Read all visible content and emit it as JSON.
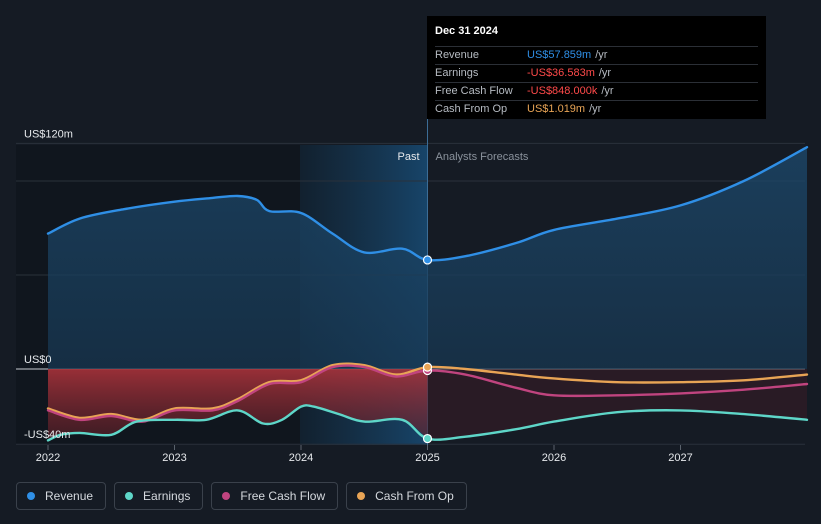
{
  "chart_data": {
    "type": "line",
    "title": "",
    "y_unit_labels": [
      "US$120m",
      "US$0",
      "-US$40m"
    ],
    "ylim": [
      -40,
      120
    ],
    "xlim": [
      2022,
      2028
    ],
    "x_ticks": [
      "2022",
      "2023",
      "2024",
      "2025",
      "2026",
      "2027"
    ],
    "divider_x": 2025,
    "past_label": "Past",
    "forecast_label": "Analysts Forecasts",
    "series": [
      {
        "name": "Revenue",
        "color": "#2f8fe6",
        "points": [
          [
            2022,
            72
          ],
          [
            2022.25,
            80
          ],
          [
            2022.6,
            85
          ],
          [
            2023,
            89
          ],
          [
            2023.3,
            91
          ],
          [
            2023.5,
            92
          ],
          [
            2023.65,
            90
          ],
          [
            2023.75,
            84
          ],
          [
            2024,
            83
          ],
          [
            2024.25,
            72
          ],
          [
            2024.5,
            62
          ],
          [
            2024.8,
            64
          ],
          [
            2025,
            58
          ],
          [
            2025.3,
            60
          ],
          [
            2025.7,
            67
          ],
          [
            2026,
            74
          ],
          [
            2026.5,
            80
          ],
          [
            2027,
            87
          ],
          [
            2027.5,
            100
          ],
          [
            2028,
            118
          ]
        ]
      },
      {
        "name": "Earnings",
        "color": "#5ed6c8",
        "points": [
          [
            2022,
            -38
          ],
          [
            2022.1,
            -35
          ],
          [
            2022.25,
            -34
          ],
          [
            2022.5,
            -35
          ],
          [
            2022.7,
            -28
          ],
          [
            2023,
            -27
          ],
          [
            2023.25,
            -27
          ],
          [
            2023.5,
            -22
          ],
          [
            2023.7,
            -29
          ],
          [
            2023.85,
            -27
          ],
          [
            2024,
            -20
          ],
          [
            2024.1,
            -20
          ],
          [
            2024.3,
            -24
          ],
          [
            2024.5,
            -28
          ],
          [
            2024.8,
            -27
          ],
          [
            2025,
            -37
          ],
          [
            2025.3,
            -36
          ],
          [
            2025.7,
            -32
          ],
          [
            2026,
            -28
          ],
          [
            2026.5,
            -23
          ],
          [
            2027,
            -22
          ],
          [
            2027.5,
            -24
          ],
          [
            2028,
            -27
          ]
        ]
      },
      {
        "name": "Free Cash Flow",
        "color": "#c0447f",
        "points": [
          [
            2022,
            -22
          ],
          [
            2022.25,
            -27
          ],
          [
            2022.5,
            -25
          ],
          [
            2022.75,
            -28
          ],
          [
            2023,
            -22
          ],
          [
            2023.3,
            -22
          ],
          [
            2023.5,
            -17
          ],
          [
            2023.75,
            -8
          ],
          [
            2024,
            -7
          ],
          [
            2024.25,
            1
          ],
          [
            2024.5,
            1
          ],
          [
            2024.75,
            -4
          ],
          [
            2025,
            -0.8
          ],
          [
            2025.3,
            -3
          ],
          [
            2025.7,
            -10
          ],
          [
            2026,
            -14
          ],
          [
            2026.5,
            -14
          ],
          [
            2027,
            -13
          ],
          [
            2027.5,
            -11
          ],
          [
            2028,
            -8
          ]
        ]
      },
      {
        "name": "Cash From Op",
        "color": "#e8a455",
        "points": [
          [
            2022,
            -21
          ],
          [
            2022.25,
            -26
          ],
          [
            2022.5,
            -24
          ],
          [
            2022.75,
            -27
          ],
          [
            2023,
            -21
          ],
          [
            2023.3,
            -21
          ],
          [
            2023.5,
            -16
          ],
          [
            2023.75,
            -7
          ],
          [
            2024,
            -6
          ],
          [
            2024.25,
            2
          ],
          [
            2024.5,
            2
          ],
          [
            2024.75,
            -3
          ],
          [
            2025,
            1
          ],
          [
            2025.3,
            0
          ],
          [
            2025.7,
            -3
          ],
          [
            2026,
            -5
          ],
          [
            2026.5,
            -7
          ],
          [
            2027,
            -7
          ],
          [
            2027.5,
            -6
          ],
          [
            2028,
            -3
          ]
        ]
      }
    ]
  },
  "tooltip": {
    "date": "Dec 31 2024",
    "rows": [
      {
        "label": "Revenue",
        "value": "US$57.859m",
        "unit": "/yr",
        "color": "#2f8fe6"
      },
      {
        "label": "Earnings",
        "value": "-US$36.583m",
        "unit": "/yr",
        "color": "#ff4a4a"
      },
      {
        "label": "Free Cash Flow",
        "value": "-US$848.000k",
        "unit": "/yr",
        "color": "#ff4a4a"
      },
      {
        "label": "Cash From Op",
        "value": "US$1.019m",
        "unit": "/yr",
        "color": "#e8a455"
      }
    ]
  },
  "legend": [
    {
      "label": "Revenue",
      "color": "#2f8fe6"
    },
    {
      "label": "Earnings",
      "color": "#5ed6c8"
    },
    {
      "label": "Free Cash Flow",
      "color": "#c0447f"
    },
    {
      "label": "Cash From Op",
      "color": "#e8a455"
    }
  ]
}
